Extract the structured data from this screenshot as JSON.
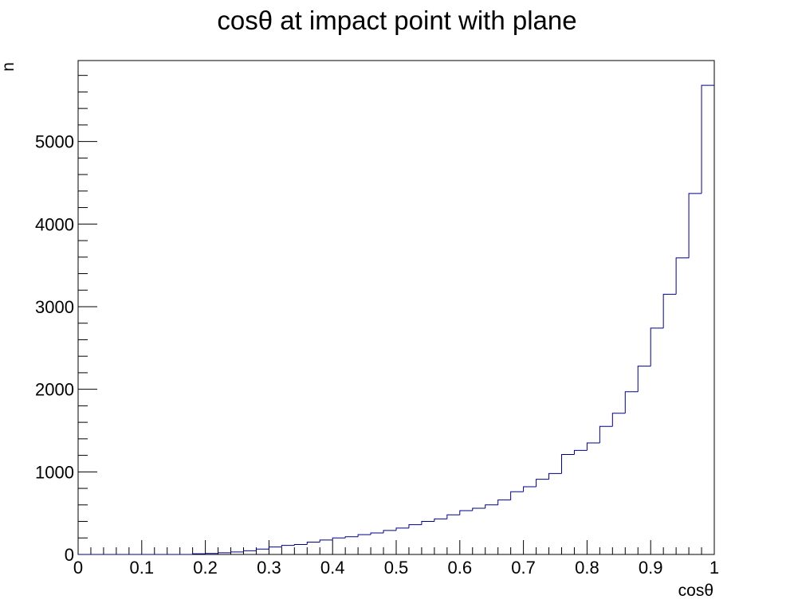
{
  "chart_data": {
    "type": "histogram",
    "title": "cosθ at impact point with plane",
    "xlabel": "cosθ",
    "ylabel": "n",
    "xlim": [
      0,
      1
    ],
    "ylim": [
      0,
      5980
    ],
    "x_ticks": [
      "0",
      "0.1",
      "0.2",
      "0.3",
      "0.4",
      "0.5",
      "0.6",
      "0.7",
      "0.8",
      "0.9",
      "1"
    ],
    "y_ticks": [
      "0",
      "1000",
      "2000",
      "3000",
      "4000",
      "5000"
    ],
    "line_color": "#000080",
    "bin_width": 0.02,
    "bin_start": 0.0,
    "values": [
      0,
      0,
      0,
      0,
      0,
      0,
      0,
      0,
      0,
      8,
      12,
      20,
      30,
      45,
      65,
      90,
      110,
      120,
      150,
      175,
      200,
      215,
      240,
      260,
      290,
      320,
      360,
      400,
      430,
      480,
      530,
      560,
      600,
      660,
      760,
      820,
      910,
      980,
      1210,
      1260,
      1350,
      1550,
      1710,
      1970,
      2280,
      2740,
      3150,
      3590,
      4370,
      5680
    ]
  }
}
